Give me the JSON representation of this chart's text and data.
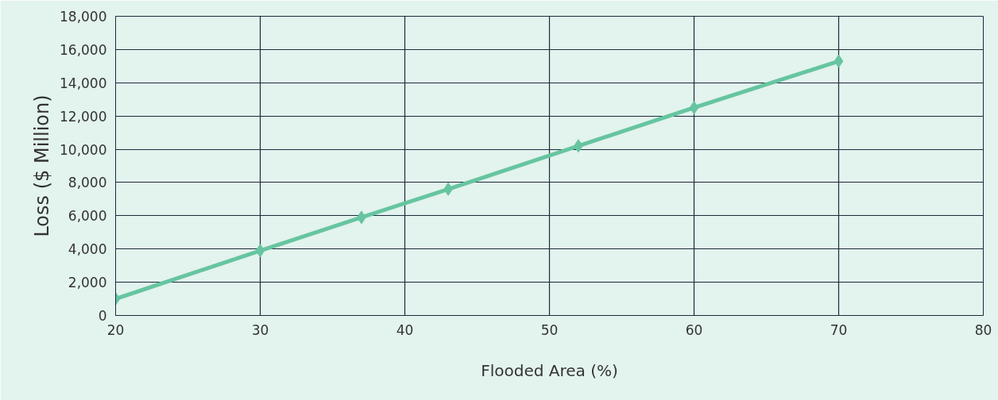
{
  "chart_data": {
    "type": "line",
    "xlabel": "Flooded Area (%)",
    "ylabel": "Loss ($ Million)",
    "x": [
      20,
      30,
      37,
      43,
      52,
      60,
      70
    ],
    "series": [
      {
        "color": "#66c5a0",
        "values": [
          1000,
          3900,
          5900,
          7600,
          10200,
          12500,
          15300
        ]
      }
    ],
    "xlim": [
      20,
      80
    ],
    "xticks": [
      20,
      30,
      40,
      50,
      60,
      70,
      80
    ],
    "ylim": [
      0,
      18000
    ],
    "yticks": [
      0,
      {
        "value": 2000,
        "label": "2,000"
      },
      {
        "value": 4000,
        "label": "4,000"
      },
      {
        "value": 6000,
        "label": "6,000"
      },
      {
        "value": 8000,
        "label": "8,000"
      },
      {
        "value": 10000,
        "label": "10,000"
      },
      {
        "value": 12000,
        "label": "12,000"
      },
      {
        "value": 14000,
        "label": "14,000"
      },
      {
        "value": 16000,
        "label": "16,000"
      },
      {
        "value": 18000,
        "label": "18,000"
      }
    ],
    "grid": true,
    "marker": "diamond",
    "line_style": "solid"
  }
}
